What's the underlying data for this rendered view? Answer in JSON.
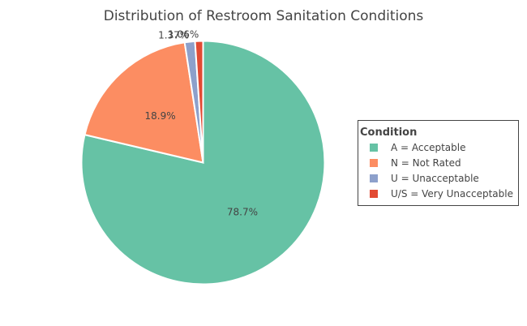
{
  "chart_data": {
    "type": "pie",
    "title": "Distribution of Restroom Sanitation Conditions",
    "legend": {
      "title": "Condition",
      "placement": "right"
    },
    "slices": [
      {
        "label": "A = Acceptable",
        "percent": 78.7,
        "percent_text": "78.7%",
        "color": "#66c2a5"
      },
      {
        "label": "N = Not Rated",
        "percent": 18.9,
        "percent_text": "18.9%",
        "color": "#fc8d62"
      },
      {
        "label": "U = Unacceptable",
        "percent": 1.37,
        "percent_text": "1.37%",
        "color": "#8da0cb"
      },
      {
        "label": "U/S = Very Unacceptable",
        "percent": 1.06,
        "percent_text": "1.06%",
        "color": "#e24a33"
      }
    ]
  }
}
